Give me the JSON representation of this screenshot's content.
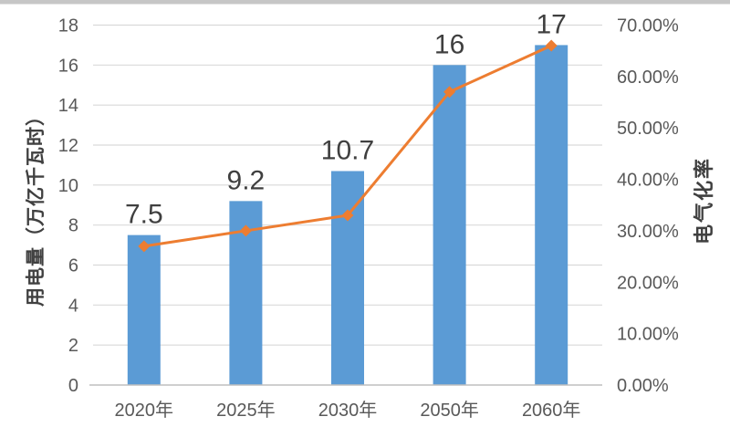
{
  "chart_data": {
    "type": "bar",
    "subtype": "combo-bar-line",
    "categories": [
      "2020年",
      "2025年",
      "2030年",
      "2050年",
      "2060年"
    ],
    "series": [
      {
        "name": "用电量",
        "type": "bar",
        "axis": "left",
        "values": [
          7.5,
          9.2,
          10.7,
          16,
          17
        ],
        "data_labels": [
          "7.5",
          "9.2",
          "10.7",
          "16",
          "17"
        ],
        "color": "#5b9bd5"
      },
      {
        "name": "电气化率",
        "type": "line",
        "axis": "right",
        "values": [
          27,
          30,
          33,
          57,
          66
        ],
        "unit": "%",
        "color": "#ed7d31",
        "marker": "diamond"
      }
    ],
    "left_axis": {
      "title": "用电量（万亿千瓦时）",
      "min": 0,
      "max": 18,
      "step": 2,
      "tick_labels": [
        "18",
        "16",
        "14",
        "12",
        "10",
        "8",
        "6",
        "4",
        "2",
        "0"
      ]
    },
    "right_axis": {
      "title": "电气化率",
      "min": 0,
      "max": 70,
      "step": 10,
      "tick_labels": [
        "70.00%",
        "60.00%",
        "50.00%",
        "40.00%",
        "30.00%",
        "20.00%",
        "10.00%",
        "0.00%"
      ]
    },
    "grid": true,
    "legend": "none",
    "colors": {
      "bar": "#5b9bd5",
      "line": "#ed7d31",
      "gridline": "#d9d9d9",
      "axis_line": "#bfbfbf",
      "tick_label": "#595959",
      "data_label": "#3f3f3f"
    }
  }
}
